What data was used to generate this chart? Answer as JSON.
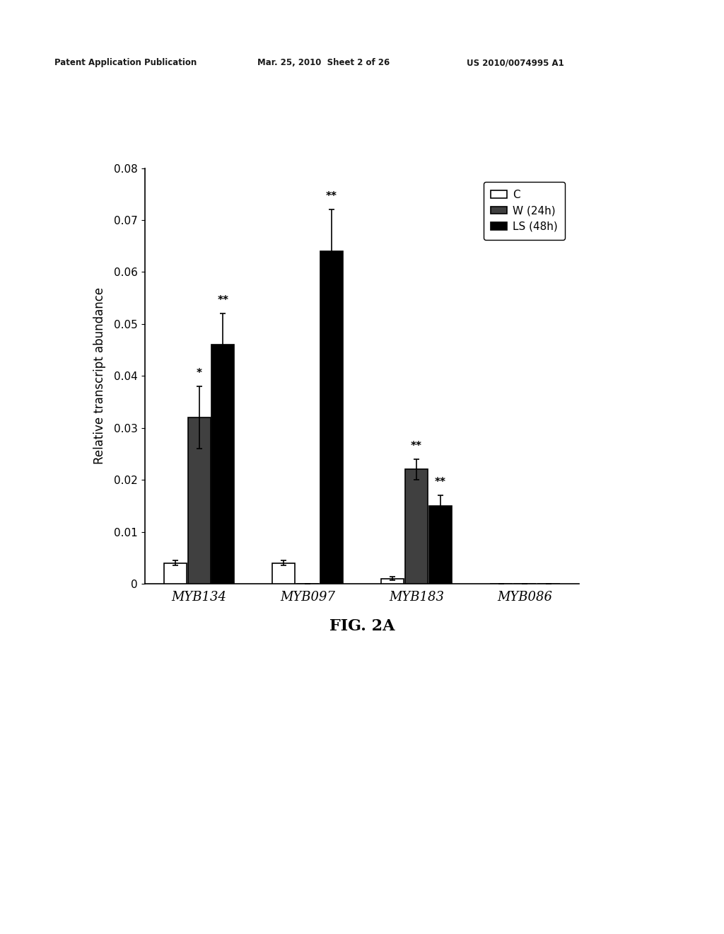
{
  "categories": [
    "MYB134",
    "MYB097",
    "MYB183",
    "MYB086"
  ],
  "series": {
    "C": {
      "values": [
        0.004,
        0.004,
        0.001,
        0.0
      ],
      "errors": [
        0.0005,
        0.0005,
        0.0003,
        0.0
      ],
      "color": "#ffffff",
      "edgecolor": "#000000"
    },
    "W (24h)": {
      "values": [
        0.032,
        0.0,
        0.022,
        0.0
      ],
      "errors": [
        0.006,
        0.0,
        0.002,
        0.0
      ],
      "color": "#404040",
      "edgecolor": "#000000"
    },
    "LS (48h)": {
      "values": [
        0.046,
        0.064,
        0.015,
        0.0
      ],
      "errors": [
        0.006,
        0.008,
        0.002,
        0.0
      ],
      "color": "#000000",
      "edgecolor": "#000000"
    }
  },
  "significance": {
    "MYB134": {
      "C": null,
      "W (24h)": "*",
      "LS (48h)": "**"
    },
    "MYB097": {
      "C": null,
      "W (24h)": null,
      "LS (48h)": "**"
    },
    "MYB183": {
      "C": null,
      "W (24h)": "**",
      "LS (48h)": "**"
    },
    "MYB086": {
      "C": null,
      "W (24h)": null,
      "LS (48h)": null
    }
  },
  "ylabel": "Relative transcript abundance",
  "ylim": [
    0,
    0.08
  ],
  "yticks": [
    0,
    0.01,
    0.02,
    0.03,
    0.04,
    0.05,
    0.06,
    0.07,
    0.08
  ],
  "ytick_labels": [
    "0",
    "0.01",
    "0.02",
    "0.03",
    "0.04",
    "0.05",
    "0.06",
    "0.07",
    "0.08"
  ],
  "figure_label": "FIG. 2A",
  "header_left": "Patent Application Publication",
  "header_mid": "Mar. 25, 2010  Sheet 2 of 26",
  "header_right": "US 2010/0074995 A1",
  "bar_width": 0.22,
  "background_color": "#ffffff"
}
